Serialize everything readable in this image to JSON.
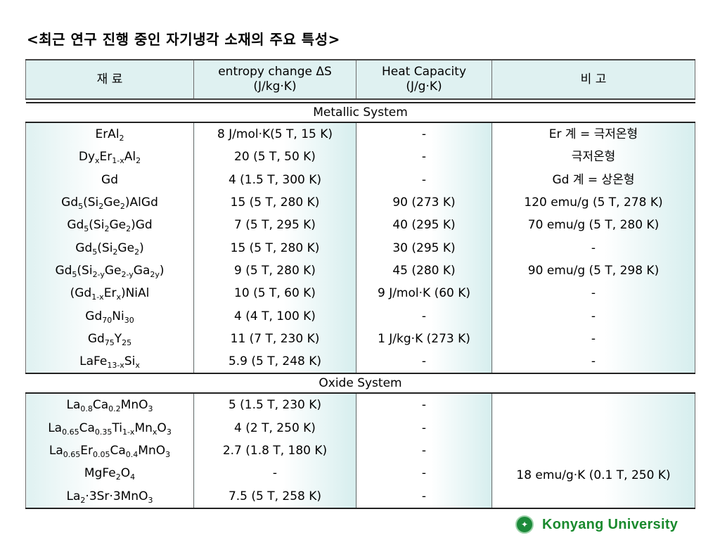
{
  "title": "<최근 연구 진행 중인 자기냉각 소재의 주요 특성>",
  "table": {
    "headers": [
      "재 료",
      "entropy change ΔS (J/kg·K)",
      "Heat Capacity (J/g·K)",
      "비 고"
    ],
    "sections": [
      {
        "label": "Metallic System",
        "rows": [
          {
            "material_html": "ErAl<sub>2</sub>",
            "entropy": "8 J/mol·K(5 T, 15 K)",
            "heat": "-",
            "note": "Er 계 = 극저온형"
          },
          {
            "material_html": "Dy<sub>x</sub>Er<sub>1-x</sub>Al<sub>2</sub>",
            "entropy": "20 (5 T, 50 K)",
            "heat": "-",
            "note": "극저온형"
          },
          {
            "material_html": "Gd",
            "entropy": "4 (1.5 T, 300 K)",
            "heat": "-",
            "note": "Gd 계 = 상온형"
          },
          {
            "material_html": "Gd<sub>5</sub>(Si<sub>2</sub>Ge<sub>2</sub>)AlGd",
            "entropy": "15 (5 T, 280 K)",
            "heat": "90 (273 K)",
            "note": "120 emu/g (5 T, 278 K)"
          },
          {
            "material_html": "Gd<sub>5</sub>(Si<sub>2</sub>Ge<sub>2</sub>)Gd",
            "entropy": "7 (5 T, 295 K)",
            "heat": "40 (295 K)",
            "note": "70 emu/g (5 T, 280 K)"
          },
          {
            "material_html": "Gd<sub>5</sub>(Si<sub>2</sub>Ge<sub>2</sub>)",
            "entropy": "15 (5 T, 280 K)",
            "heat": "30 (295 K)",
            "note": "-"
          },
          {
            "material_html": "Gd<sub>5</sub>(Si<sub>2-y</sub>Ge<sub>2-y</sub>Ga<sub>2y</sub>)",
            "entropy": "9 (5 T, 280 K)",
            "heat": "45 (280 K)",
            "note": "90 emu/g (5 T, 298 K)"
          },
          {
            "material_html": "(Gd<sub>1-x</sub>Er<sub>x</sub>)NiAl",
            "entropy": "10 (5 T, 60 K)",
            "heat": "9 J/mol·K (60 K)",
            "note": "-"
          },
          {
            "material_html": "Gd<sub>70</sub>Ni<sub>30</sub>",
            "entropy": "4 (4 T, 100 K)",
            "heat": "-",
            "note": "-"
          },
          {
            "material_html": "Gd<sub>75</sub>Y<sub>25</sub>",
            "entropy": "11 (7 T, 230 K)",
            "heat": "1 J/kg·K (273 K)",
            "note": "-"
          },
          {
            "material_html": "LaFe<sub>13-x</sub>Si<sub>x</sub>",
            "entropy": "5.9 (5 T, 248 K)",
            "heat": "-",
            "note": "-"
          }
        ]
      },
      {
        "label": "Oxide System",
        "merged_note": "18 emu/g·K (0.1 T, 250 K)",
        "rows": [
          {
            "material_html": "La<sub>0.8</sub>Ca<sub>0.2</sub>MnO<sub>3</sub>",
            "entropy": "5 (1.5 T, 230 K)",
            "heat": "-"
          },
          {
            "material_html": "La<sub>0.65</sub>Ca<sub>0.35</sub>Ti<sub>1-x</sub>Mn<sub>x</sub>O<sub>3</sub>",
            "entropy": "4 (2 T, 250 K)",
            "heat": "-"
          },
          {
            "material_html": "La<sub>0.65</sub>Er<sub>0.05</sub>Ca<sub>0.4</sub>MnO<sub>3</sub>",
            "entropy": "2.7 (1.8 T, 180 K)",
            "heat": "-"
          },
          {
            "material_html": "MgFe<sub>2</sub>O<sub>4</sub>",
            "entropy": "-",
            "heat": "-"
          },
          {
            "material_html": "La<sub>2</sub>·3Sr·3MnO<sub>3</sub>",
            "entropy": "7.5 (5 T, 258 K)",
            "heat": "-"
          }
        ]
      }
    ]
  },
  "footer": {
    "university": "Konyang University",
    "emblem_icon": "university-emblem-icon",
    "brand_color": "#1a8a2e"
  }
}
